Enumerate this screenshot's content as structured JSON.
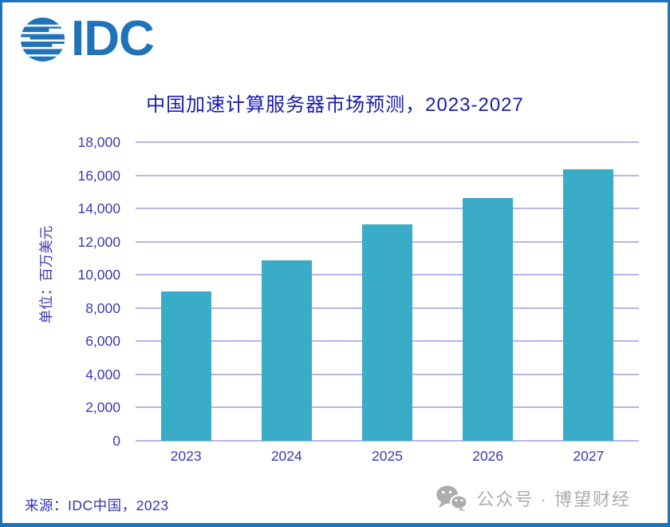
{
  "brand": {
    "logo_text": "IDC",
    "logo_color": "#1E73B9"
  },
  "chart_data": {
    "type": "bar",
    "title": "中国加速计算服务器市场预测，2023-2027",
    "xlabel": "",
    "ylabel": "单位：百万美元",
    "categories": [
      "2023",
      "2024",
      "2025",
      "2026",
      "2027"
    ],
    "values": [
      9000,
      10900,
      13050,
      14650,
      16350
    ],
    "ylim": [
      0,
      18000
    ],
    "yticks": [
      {
        "value": 18000,
        "label": "18,000"
      },
      {
        "value": 16000,
        "label": "16,000"
      },
      {
        "value": 14000,
        "label": "14,000"
      },
      {
        "value": 12000,
        "label": "12,000"
      },
      {
        "value": 10000,
        "label": "10,000"
      },
      {
        "value": 8000,
        "label": "8,000"
      },
      {
        "value": 6000,
        "label": "6,000"
      },
      {
        "value": 4000,
        "label": "4,000"
      },
      {
        "value": 2000,
        "label": "2,000"
      },
      {
        "value": 0,
        "label": "0"
      }
    ],
    "grid": true,
    "legend": false,
    "bar_color": "#3AACC8",
    "gridline_color": "#B6B6E8",
    "title_color": "#1B1BB0",
    "axis_text_color": "#3B3BB5"
  },
  "source": {
    "text": "来源：IDC中国，2023",
    "color": "#3535B8"
  },
  "watermark": {
    "icon": "wechat-icon",
    "text": "公众号 · 博望财经",
    "color": "#ADADAD"
  }
}
